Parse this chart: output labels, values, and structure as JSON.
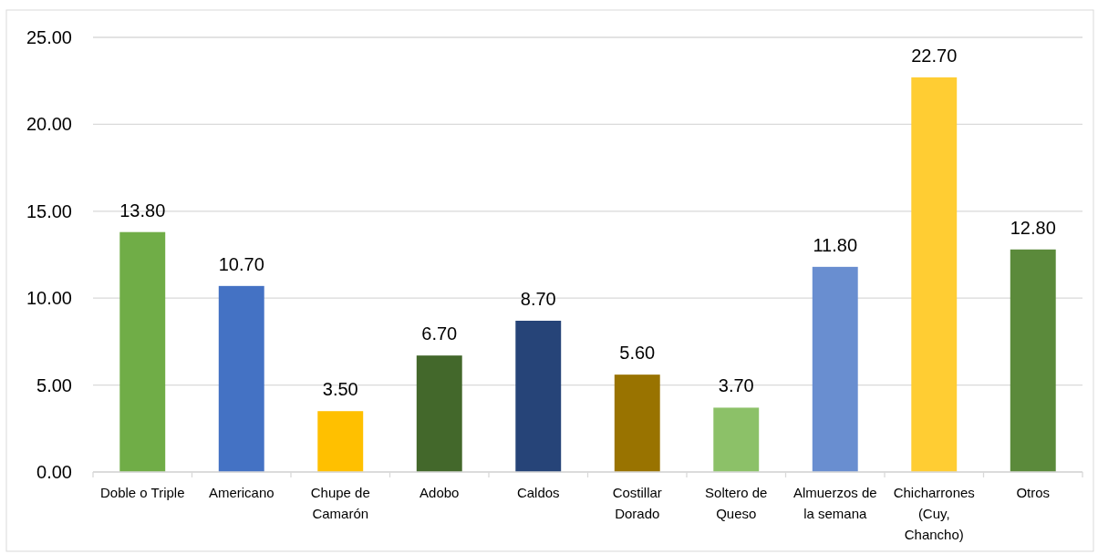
{
  "chart_data": {
    "type": "bar",
    "categories": [
      "Doble o Triple",
      "Americano",
      "Chupe de Camarón",
      "Adobo",
      "Caldos",
      "Costillar Dorado",
      "Soltero de Queso",
      "Almuerzos de la semana",
      "Chicharrones (Cuy, Chancho)",
      "Otros"
    ],
    "values": [
      13.8,
      10.7,
      3.5,
      6.7,
      8.7,
      5.6,
      3.7,
      11.8,
      22.7,
      12.8
    ],
    "value_labels": [
      "13.80",
      "10.70",
      "3.50",
      "6.70",
      "8.70",
      "5.60",
      "3.70",
      "11.80",
      "22.70",
      "12.80"
    ],
    "colors": [
      "#70ad47",
      "#4472c4",
      "#ffc000",
      "#43682b",
      "#264478",
      "#997300",
      "#8cc168",
      "#698ed0",
      "#ffcd33",
      "#5b8a3b"
    ],
    "ylim": [
      0,
      25
    ],
    "yticks": [
      {
        "value": 0,
        "label": "0.00"
      },
      {
        "value": 5,
        "label": "5.00"
      },
      {
        "value": 10,
        "label": "10.00"
      },
      {
        "value": 15,
        "label": "15.00"
      },
      {
        "value": 20,
        "label": "20.00"
      },
      {
        "value": 25,
        "label": "25.00"
      }
    ],
    "grid": "y"
  }
}
